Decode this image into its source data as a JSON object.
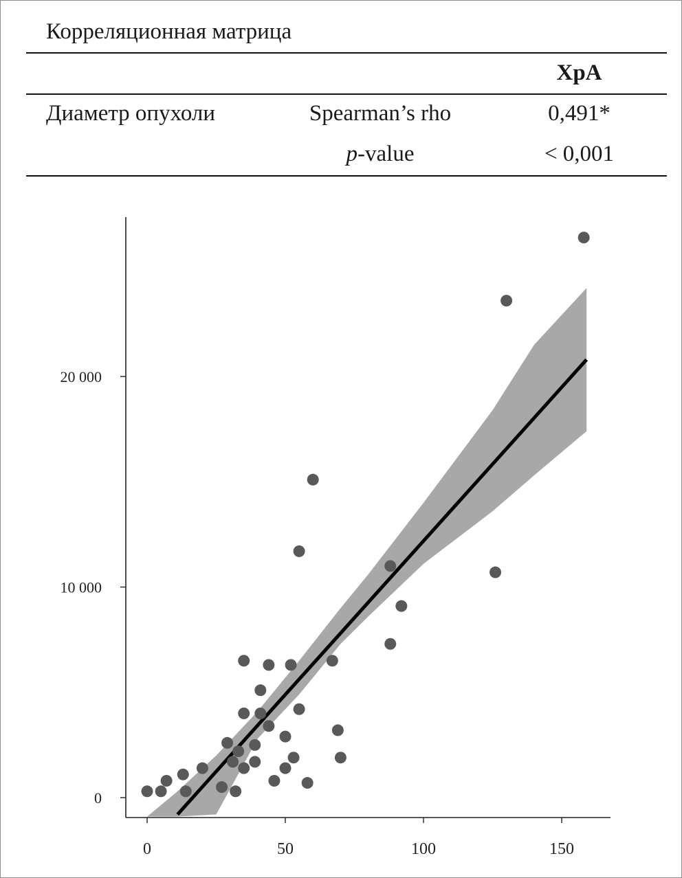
{
  "table": {
    "title": "Корреляционная матрица",
    "column_header": "XpA",
    "row_label": "Диаметр опухоли",
    "stat_1_label": "Spearman’s rho",
    "stat_2_italic": "p",
    "stat_2_rest": "-value",
    "rho_value": "0,491*",
    "p_value": "< 0,001"
  },
  "chart_data": {
    "type": "scatter",
    "title": "",
    "xlabel": "",
    "ylabel": "",
    "xlim": [
      -11,
      167
    ],
    "ylim": [
      -1000,
      27600
    ],
    "x_ticks": [
      0,
      50,
      100,
      150
    ],
    "x_tick_labels": [
      "0",
      "50",
      "100",
      "150"
    ],
    "y_ticks": [
      0,
      10000,
      20000
    ],
    "y_tick_labels": [
      "0",
      "10 000",
      "20 000"
    ],
    "grid": false,
    "legend": "none",
    "point_color": "#595959",
    "band_color": "#a8a8a8",
    "line_color": "#000000",
    "points": [
      {
        "x": 0,
        "y": 300
      },
      {
        "x": 5,
        "y": 300
      },
      {
        "x": 7,
        "y": 800
      },
      {
        "x": 13,
        "y": 1100
      },
      {
        "x": 14,
        "y": 300
      },
      {
        "x": 20,
        "y": 1400
      },
      {
        "x": 27,
        "y": 500
      },
      {
        "x": 29,
        "y": 2600
      },
      {
        "x": 31,
        "y": 1700
      },
      {
        "x": 32,
        "y": 300
      },
      {
        "x": 33,
        "y": 2200
      },
      {
        "x": 35,
        "y": 1400
      },
      {
        "x": 35,
        "y": 4000
      },
      {
        "x": 35,
        "y": 6500
      },
      {
        "x": 39,
        "y": 1700
      },
      {
        "x": 39,
        "y": 2500
      },
      {
        "x": 41,
        "y": 4000
      },
      {
        "x": 41,
        "y": 5100
      },
      {
        "x": 44,
        "y": 3400
      },
      {
        "x": 44,
        "y": 6300
      },
      {
        "x": 46,
        "y": 800
      },
      {
        "x": 50,
        "y": 1400
      },
      {
        "x": 50,
        "y": 2900
      },
      {
        "x": 52,
        "y": 6300
      },
      {
        "x": 53,
        "y": 1900
      },
      {
        "x": 55,
        "y": 11700
      },
      {
        "x": 55,
        "y": 4200
      },
      {
        "x": 58,
        "y": 700
      },
      {
        "x": 60,
        "y": 15100
      },
      {
        "x": 67,
        "y": 6500
      },
      {
        "x": 69,
        "y": 3200
      },
      {
        "x": 70,
        "y": 1900
      },
      {
        "x": 88,
        "y": 11000
      },
      {
        "x": 88,
        "y": 7300
      },
      {
        "x": 92,
        "y": 9100
      },
      {
        "x": 126,
        "y": 10700
      },
      {
        "x": 130,
        "y": 23600
      },
      {
        "x": 158,
        "y": 26600
      }
    ],
    "fit_line": {
      "x": [
        11,
        159
      ],
      "y": [
        -800,
        20800
      ]
    },
    "confidence_band": {
      "x": [
        0,
        11,
        25,
        40,
        55,
        70,
        80,
        100,
        125,
        140,
        159
      ],
      "upper": [
        -900,
        300,
        2000,
        4100,
        6500,
        9000,
        10600,
        14000,
        18400,
        21500,
        24200
      ],
      "lower": [
        -900,
        -900,
        -800,
        2800,
        4900,
        7300,
        8600,
        11100,
        13600,
        15300,
        17400
      ]
    }
  }
}
